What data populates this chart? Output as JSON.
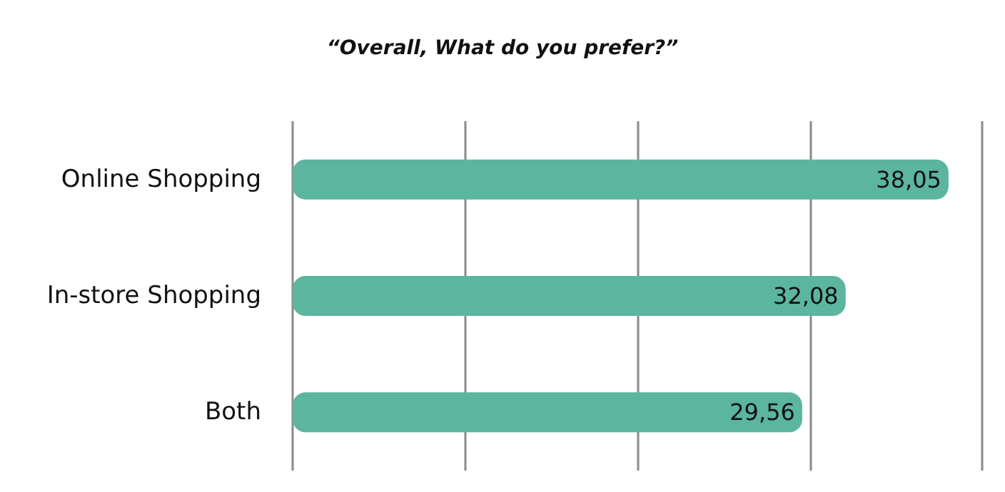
{
  "chart_data": {
    "type": "bar",
    "orientation": "horizontal",
    "title": "“Overall, What do you prefer?”",
    "categories": [
      "Online Shopping",
      "In-store Shopping",
      "Both"
    ],
    "values": [
      38.05,
      32.08,
      29.56
    ],
    "value_labels": [
      "38,05",
      "32,08",
      "29,56"
    ],
    "color": "#5bb59f",
    "xlim": [
      0,
      40
    ],
    "xticks": [
      {
        "value": 0,
        "label": null
      },
      {
        "value": 10,
        "label": null
      },
      {
        "value": 20,
        "label": null
      },
      {
        "value": 30,
        "label": null
      },
      {
        "value": 40,
        "label": null
      }
    ],
    "tick_labels": "y",
    "grid": "x"
  }
}
